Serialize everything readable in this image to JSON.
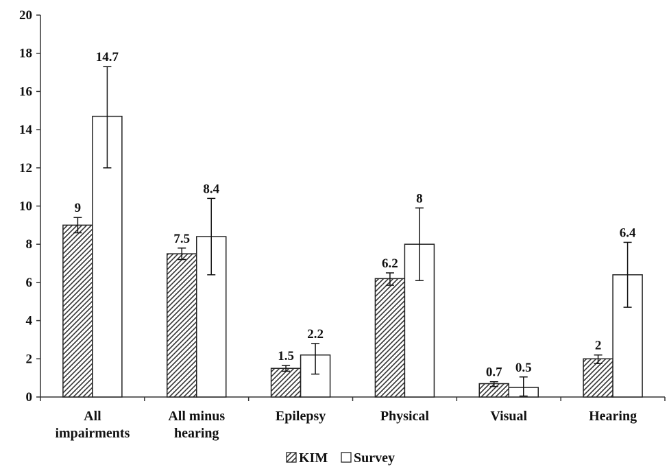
{
  "chart_data": {
    "type": "bar",
    "title": "",
    "xlabel": "",
    "ylabel": "",
    "ylim": [
      0,
      20
    ],
    "yticks": [
      0,
      2,
      4,
      6,
      8,
      10,
      12,
      14,
      16,
      18,
      20
    ],
    "grid": false,
    "legend_position": "bottom",
    "categories": [
      [
        "All",
        "impairments"
      ],
      [
        "All minus",
        "hearing"
      ],
      [
        "Epilepsy"
      ],
      [
        "Physical"
      ],
      [
        "Visual"
      ],
      [
        "Hearing"
      ]
    ],
    "series": [
      {
        "name": "KIM",
        "fill": "hatched",
        "values": [
          9,
          7.5,
          1.5,
          6.2,
          0.7,
          2
        ],
        "labels": [
          "9",
          "7.5",
          "1.5",
          "6.2",
          "0.7",
          "2"
        ],
        "error_low": [
          8.6,
          7.2,
          1.35,
          5.85,
          0.55,
          1.75
        ],
        "error_high": [
          9.4,
          7.8,
          1.65,
          6.5,
          0.8,
          2.2
        ]
      },
      {
        "name": "Survey",
        "fill": "white",
        "values": [
          14.7,
          8.4,
          2.2,
          8,
          0.5,
          6.4
        ],
        "labels": [
          "14.7",
          "8.4",
          "2.2",
          "8",
          "0.5",
          "6.4"
        ],
        "error_low": [
          12,
          6.4,
          1.2,
          6.1,
          0.05,
          4.7
        ],
        "error_high": [
          17.3,
          10.4,
          2.8,
          9.9,
          1.05,
          8.1
        ]
      }
    ],
    "colors": {
      "axis": "#333333",
      "bar_stroke": "#222222",
      "hatch": "#333333",
      "background": "#ffffff"
    }
  }
}
